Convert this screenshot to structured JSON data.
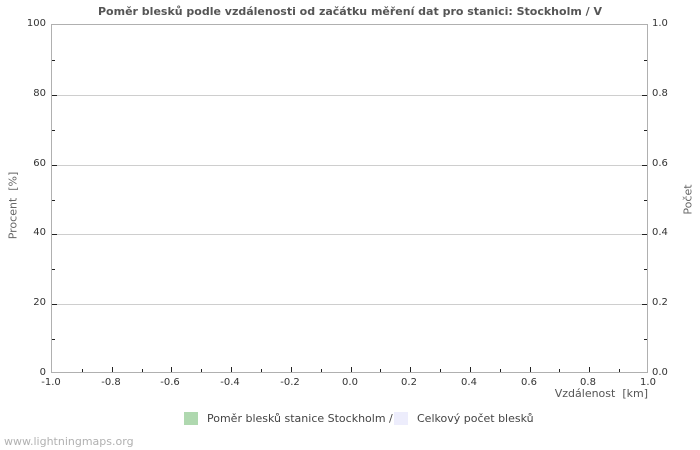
{
  "title": "Poměr blesků podle vzdálenosti od začátku měření dat pro stanici: Stockholm / V",
  "watermark": "www.lightningmaps.org",
  "axes": {
    "left": {
      "label": "Procent  [%]",
      "ticks": [
        "100",
        "80",
        "60",
        "40",
        "20",
        "0"
      ]
    },
    "right": {
      "label": "Počet",
      "ticks": [
        "1.0",
        "0.8",
        "0.6",
        "0.4",
        "0.2",
        "0.0"
      ]
    },
    "bottom": {
      "label": "Vzdálenost  [km]",
      "ticks": [
        "-1.0",
        "-0.8",
        "-0.6",
        "-0.4",
        "-0.2",
        "0.0",
        "0.2",
        "0.4",
        "0.6",
        "0.8",
        "1.0"
      ]
    }
  },
  "legend": [
    {
      "label": "Poměr blesků stanice Stockholm / V",
      "color": "#afd8af"
    },
    {
      "label": "Celkový počet blesků",
      "color": "#ededfc"
    }
  ],
  "colors": {
    "gridline": "#cecece",
    "plot_border": "#b0b0b0",
    "tick": "#222222",
    "title_text": "#555555",
    "axis_text": "#666666",
    "ticklabel_text": "#333333",
    "watermark_text": "#b1b1b1"
  },
  "chart_data": {
    "type": "bar",
    "title": "Poměr blesků podle vzdálenosti od začátku měření dat pro stanici: Stockholm / V",
    "xlabel": "Vzdálenost [km]",
    "ylabel_left": "Procent [%]",
    "ylabel_right": "Počet",
    "xlim": [
      -1.0,
      1.0
    ],
    "ylim_left": [
      0,
      100
    ],
    "ylim_right": [
      0.0,
      1.0
    ],
    "x_tick_step": 0.2,
    "grid": "horizontal-major",
    "legend_position": "bottom",
    "series": [
      {
        "name": "Poměr blesků stanice Stockholm / V",
        "axis": "left",
        "color": "#afd8af",
        "x": [],
        "values": []
      },
      {
        "name": "Celkový počet blesků",
        "axis": "right",
        "color": "#ededfc",
        "x": [],
        "values": []
      }
    ]
  }
}
